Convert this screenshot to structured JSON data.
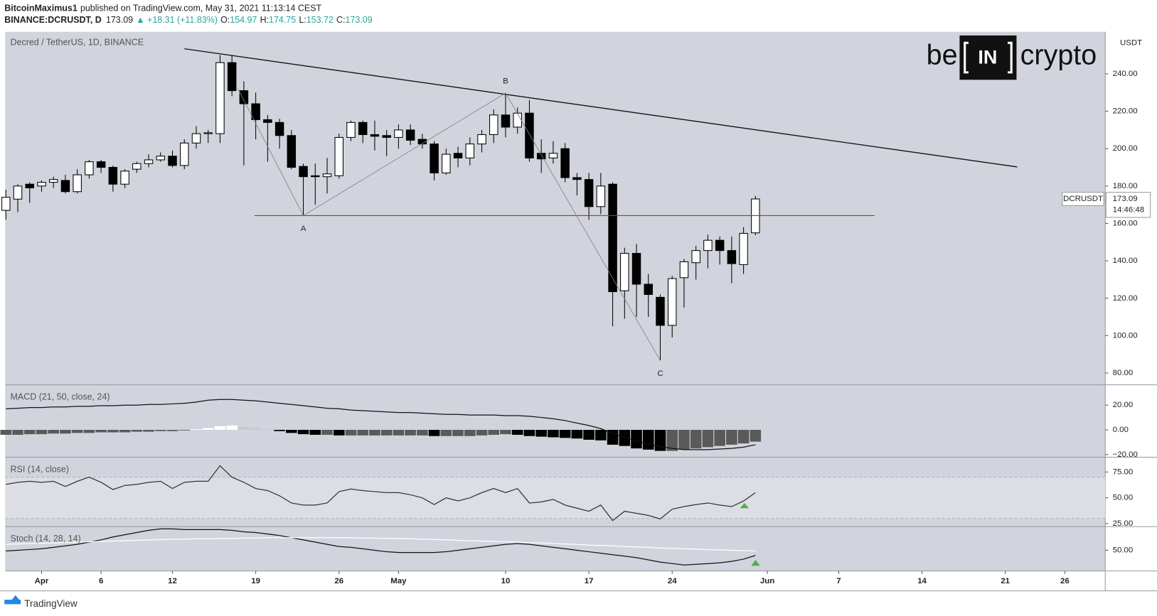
{
  "header": {
    "publisher": "BitcoinMaximus1",
    "published": "published on TradingView.com, May 31, 2021 11:13:14 CEST",
    "symbol": "BINANCE:DCRUSDT, D",
    "price": "173.09",
    "change": "▲ +18.31 (+11.83%)",
    "ohlc": [
      {
        "label": "O:",
        "value": 154.97
      },
      {
        "label": "H:",
        "value": 174.75
      },
      {
        "label": "L:",
        "value": 153.72
      },
      {
        "label": "C:",
        "value": 173.09
      }
    ]
  },
  "logo": {
    "left": "be",
    "box": "IN",
    "right": "crypto"
  },
  "footer": "TradingView",
  "chart_data": [
    {
      "type": "candlestick",
      "title": "Decred / TetherUS, 1D, BINANCE",
      "unit": "USDT",
      "up_color": "#ffffff",
      "down_color": "#000000",
      "x": [
        0,
        1,
        2,
        3,
        4,
        5,
        6,
        7,
        8,
        9,
        10,
        11,
        12,
        13,
        14,
        15,
        16,
        17,
        18,
        19,
        20,
        21,
        22,
        23,
        24,
        25,
        26,
        27,
        28,
        29,
        30,
        31,
        32,
        33,
        34,
        35,
        36,
        37,
        38,
        39,
        40,
        41,
        42,
        43,
        44,
        45,
        46,
        47,
        48,
        49,
        50,
        51,
        52,
        53,
        54,
        55,
        56,
        57,
        58,
        59,
        60,
        61,
        62,
        63
      ],
      "open": [
        167,
        173,
        181,
        180,
        182,
        183,
        177,
        186,
        193,
        190,
        181,
        189,
        192,
        194,
        196,
        191,
        203,
        208,
        208,
        246,
        231,
        224,
        215.5,
        214,
        207,
        190.5,
        185.5,
        185,
        185.5,
        206,
        214,
        207.5,
        207,
        206,
        210,
        205,
        202.5,
        187,
        197.5,
        195,
        202.5,
        207.5,
        218,
        211.5,
        219,
        197.5,
        195,
        200,
        184.5,
        183.5,
        169,
        181,
        124,
        144,
        127.5,
        120.5,
        105.5,
        131,
        139,
        145.5,
        151,
        145.5,
        138,
        154.97
      ],
      "high": [
        178,
        181,
        182,
        183,
        185,
        186,
        189,
        194,
        194,
        191,
        189,
        193,
        197,
        198,
        199,
        205,
        212,
        210,
        250,
        250,
        236,
        230,
        218,
        216,
        210,
        192,
        192,
        195,
        208,
        215,
        215,
        215,
        210,
        213,
        213,
        208,
        204,
        200,
        201,
        206,
        210,
        221,
        229.7,
        222,
        226,
        205,
        204,
        203,
        187,
        187,
        187,
        182,
        147,
        149,
        133,
        122,
        132,
        141,
        148,
        154,
        153,
        153,
        158,
        174.75
      ],
      "low": [
        162,
        166,
        171,
        177,
        179,
        176,
        176,
        184,
        187,
        177,
        179,
        187,
        190,
        193,
        190,
        189,
        200,
        203,
        203,
        228,
        191,
        205,
        193,
        200,
        189,
        164.2,
        170,
        176,
        184,
        204,
        203,
        199,
        196,
        200,
        202,
        200,
        183,
        186,
        190,
        191,
        198,
        203,
        206,
        208,
        193,
        187,
        192,
        182,
        175,
        162,
        165,
        105,
        109,
        110,
        110,
        86.7,
        99,
        115,
        130,
        136,
        138,
        128,
        133,
        153.72
      ],
      "close": [
        174,
        180,
        179,
        182,
        183.5,
        177,
        186,
        193,
        190,
        181,
        188,
        192,
        194,
        196,
        191,
        203,
        208,
        208.5,
        246,
        231,
        224,
        215.5,
        214,
        207,
        190,
        185,
        185,
        186.5,
        206,
        214,
        207.5,
        206.6,
        206,
        210,
        204.5,
        202.5,
        187,
        197,
        195,
        202.5,
        207.5,
        218,
        211.5,
        219,
        195,
        194.5,
        197.5,
        184.5,
        183.5,
        169,
        180,
        123.5,
        144,
        127.5,
        122,
        105.5,
        130.5,
        139.5,
        145.5,
        151,
        145.5,
        138.5,
        154.7,
        173.09
      ],
      "xlim": [
        -0.06,
        92.4
      ],
      "xticks": [
        {
          "value": 3,
          "label": "Apr"
        },
        {
          "value": 8,
          "label": "6"
        },
        {
          "value": 14,
          "label": "12"
        },
        {
          "value": 21,
          "label": "19"
        },
        {
          "value": 28,
          "label": "26"
        },
        {
          "value": 33,
          "label": "May"
        },
        {
          "value": 42,
          "label": "10"
        },
        {
          "value": 49,
          "label": "17"
        },
        {
          "value": 56,
          "label": "24"
        },
        {
          "value": 64,
          "label": "Jun"
        },
        {
          "value": 70,
          "label": "7"
        },
        {
          "value": 77,
          "label": "14"
        },
        {
          "value": 84,
          "label": "21"
        },
        {
          "value": 89,
          "label": "26"
        }
      ],
      "ylim": [
        73.7,
        262.5
      ],
      "yticks": [
        {
          "value": 80,
          "label": "80.00"
        },
        {
          "value": 100,
          "label": "100.00"
        },
        {
          "value": 120,
          "label": "120.00"
        },
        {
          "value": 140,
          "label": "140.00"
        },
        {
          "value": 160,
          "label": "160.00"
        },
        {
          "value": 180,
          "label": "180.00"
        },
        {
          "value": 200,
          "label": "200.00"
        },
        {
          "value": 220,
          "label": "220.00"
        },
        {
          "value": 240,
          "label": "240.00"
        }
      ],
      "trendline": {
        "x": [
          15,
          85
        ],
        "y": [
          253.4,
          190.2
        ],
        "color": "#111111"
      },
      "level": {
        "x": [
          20.9,
          73
        ],
        "y": [
          164.2,
          164.2
        ],
        "color": "#d42020"
      },
      "wave": {
        "x": [
          19.5,
          25,
          42,
          55
        ],
        "y": [
          232,
          164.2,
          229.7,
          86.7
        ],
        "color": "#808080"
      },
      "annotations": [
        {
          "text": "A",
          "x": 25,
          "y": 164.2,
          "position": "below"
        },
        {
          "text": "B",
          "x": 42,
          "y": 229.7,
          "position": "above"
        },
        {
          "text": "C",
          "x": 55,
          "y": 86.7,
          "position": "below"
        }
      ],
      "last_price": {
        "symbol": "DCRUSDT",
        "value": 173.09,
        "countdown": "14:46:48"
      }
    },
    {
      "type": "macd",
      "title": "MACD (21, 50, close, 24)",
      "histogram": [
        -4,
        -4,
        -3.5,
        -3.5,
        -3,
        -3,
        -2.5,
        -2.5,
        -2,
        -2,
        -2,
        -1.5,
        -1.5,
        -1,
        -1,
        -0.5,
        0.5,
        1.5,
        3,
        3.5,
        2.5,
        1.5,
        0.5,
        -1,
        -2.5,
        -3.5,
        -4,
        -4,
        -4.5,
        -4.5,
        -4.5,
        -4.5,
        -4.5,
        -4.5,
        -4.5,
        -4.5,
        -5,
        -5,
        -5,
        -5,
        -4.5,
        -4,
        -3.5,
        -4,
        -5,
        -5.5,
        -6,
        -6.5,
        -7,
        -8,
        -8.5,
        -12,
        -13,
        -15,
        -16,
        -17,
        -17,
        -16,
        -15,
        -14,
        -13,
        -12,
        -11,
        -9.5
      ],
      "line": [
        17,
        17.5,
        18,
        18,
        18.5,
        18.5,
        19,
        19,
        19.5,
        19.5,
        20,
        20,
        20.5,
        20.5,
        21,
        21.5,
        22.5,
        24,
        24.5,
        24.5,
        24,
        23.5,
        22.5,
        21.5,
        20.5,
        19.5,
        18.5,
        17.5,
        17,
        16,
        15.5,
        15,
        14.5,
        14,
        14,
        13.5,
        13,
        12.5,
        12.5,
        12,
        12,
        12,
        11.5,
        11.5,
        11,
        10,
        9,
        7.5,
        5.5,
        3.5,
        1,
        -3,
        -6,
        -9,
        -11.5,
        -13.5,
        -15,
        -16,
        -16,
        -16,
        -15.5,
        -15,
        -14,
        -12
      ],
      "histogram_colors": {
        "rising_above": "#ffffff",
        "falling_above": "#c9c9c9",
        "falling_below": "#000000",
        "rising_below": "#5a5a5a"
      },
      "line_color": "#111111",
      "ylim": [
        -22.1,
        36.4
      ],
      "yticks": [
        {
          "value": 20,
          "label": "20.00"
        },
        {
          "value": 0,
          "label": "0.00"
        },
        {
          "value": -20,
          "label": "−20.00"
        }
      ]
    },
    {
      "type": "line",
      "title": "RSI (14, close)",
      "color": "#333333",
      "band": [
        30,
        70
      ],
      "band_color": "#dcdee4",
      "values": [
        63,
        65,
        66,
        65,
        66,
        61,
        66,
        70,
        65,
        58,
        62,
        63,
        65,
        66,
        59,
        65,
        66,
        66,
        81,
        70,
        65,
        59,
        57,
        52,
        45,
        43,
        43,
        45,
        56,
        58.5,
        57,
        56,
        55,
        55,
        53,
        50,
        43.5,
        50,
        47,
        50,
        55,
        59,
        55,
        59,
        45,
        46,
        48.5,
        43,
        40,
        37,
        43,
        28,
        37,
        35,
        33,
        29.5,
        39,
        41.5,
        43.5,
        45,
        43,
        41.5,
        47,
        55
      ],
      "ylim": [
        22.1,
        89.3
      ],
      "yticks": [
        {
          "value": 75,
          "label": "75.00"
        },
        {
          "value": 50,
          "label": "50.00"
        },
        {
          "value": 25,
          "label": "25.00"
        }
      ]
    },
    {
      "type": "line",
      "title": "Stoch (14, 28, 14)",
      "series": [
        {
          "color": "#111111",
          "values": [
            49,
            50,
            51,
            52,
            54,
            56,
            58,
            61,
            64,
            68,
            71,
            74,
            77,
            79,
            79,
            78,
            78,
            78,
            78,
            77,
            75,
            74,
            72,
            70,
            67,
            64,
            61,
            58,
            55,
            54,
            52,
            50,
            48,
            47,
            47,
            47,
            47,
            48,
            50,
            52,
            54,
            56,
            58,
            59,
            58,
            56,
            54,
            52,
            50,
            48,
            46,
            44,
            42,
            40,
            37,
            34,
            32,
            30,
            31,
            32,
            33,
            35,
            38,
            43
          ]
        },
        {
          "color": "#ffffff",
          "values": [
            58,
            58.5,
            59,
            59.5,
            60,
            60.5,
            61,
            61.5,
            62,
            62.5,
            63,
            63.5,
            64,
            64.5,
            65,
            65,
            65.5,
            65.5,
            66,
            66,
            66.5,
            66.5,
            67,
            67,
            67,
            67,
            67,
            67,
            67,
            67,
            66.5,
            66.5,
            66,
            66,
            65.5,
            65,
            64.5,
            64,
            63.5,
            63,
            62.5,
            62,
            61.5,
            61,
            60.5,
            60,
            59,
            58.5,
            58,
            57,
            56.5,
            56,
            55,
            54.5,
            54,
            53,
            52.5,
            52,
            51.5,
            51,
            50.5,
            50,
            49.5,
            49
          ]
        }
      ],
      "ylim": [
        22,
        82
      ],
      "yticks": [
        {
          "value": 50,
          "label": "50.00"
        }
      ]
    }
  ]
}
